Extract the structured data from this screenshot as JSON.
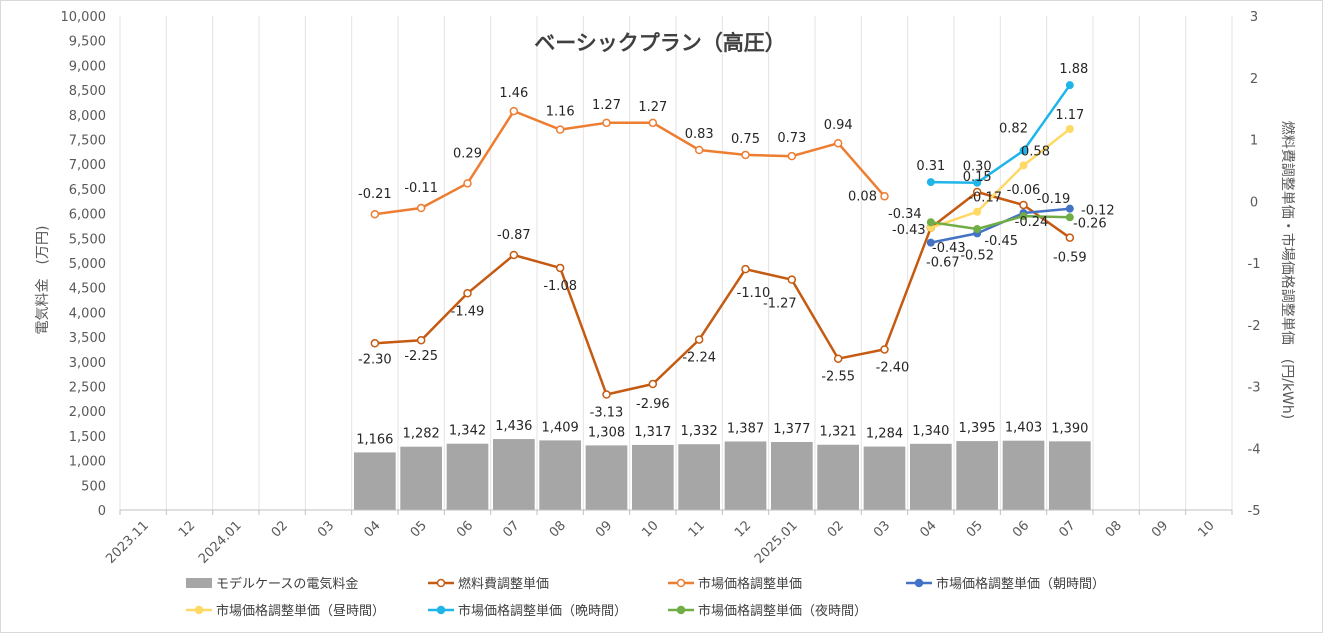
{
  "chart_data": {
    "type": "bar+line",
    "title": "ベーシックプラン（高圧）",
    "ylabel_left": "電気料金　(万円)",
    "ylabel_right": "燃料費調整単価・市場価格調整単価　(円/kWh)",
    "ylim_left": [
      0,
      10000
    ],
    "ylim_right": [
      -5,
      3
    ],
    "yticks_left": [
      "0",
      "500",
      "1,000",
      "1,500",
      "2,000",
      "2,500",
      "3,000",
      "3,500",
      "4,000",
      "4,500",
      "5,000",
      "5,500",
      "6,000",
      "6,500",
      "7,000",
      "7,500",
      "8,000",
      "8,500",
      "9,000",
      "9,500",
      "10,000"
    ],
    "yticks_right": [
      "-5",
      "-4",
      "-3",
      "-2",
      "-1",
      "0",
      "1",
      "2",
      "3"
    ],
    "categories": [
      "2023.11",
      "12",
      "2024.01",
      "02",
      "03",
      "04",
      "05",
      "06",
      "07",
      "08",
      "09",
      "10",
      "11",
      "12",
      "2025.01",
      "02",
      "03",
      "04",
      "05",
      "06",
      "07",
      "08",
      "09",
      "10"
    ],
    "grid": "vertical",
    "legend_position": "bottom",
    "series": [
      {
        "name": "モデルケースの電気料金",
        "kind": "bar",
        "axis": "left",
        "color": "#a6a6a6",
        "values": [
          null,
          null,
          null,
          null,
          null,
          1166,
          1282,
          1342,
          1436,
          1409,
          1308,
          1317,
          1332,
          1387,
          1377,
          1321,
          1284,
          1340,
          1395,
          1403,
          1390,
          null,
          null,
          null
        ],
        "labels": [
          null,
          null,
          null,
          null,
          null,
          "1,166",
          "1,282",
          "1,342",
          "1,436",
          "1,409",
          "1,308",
          "1,317",
          "1,332",
          "1,387",
          "1,377",
          "1,321",
          "1,284",
          "1,340",
          "1,395",
          "1,403",
          "1,390",
          null,
          null,
          null
        ]
      },
      {
        "name": "燃料費調整単価",
        "kind": "line",
        "axis": "right",
        "color": "#c55a11",
        "marker": "open",
        "values": [
          null,
          null,
          null,
          null,
          null,
          -2.3,
          -2.25,
          -1.49,
          -0.87,
          -1.08,
          -3.13,
          -2.96,
          -2.24,
          -1.1,
          -1.27,
          -2.55,
          -2.4,
          -0.43,
          0.15,
          -0.06,
          -0.59,
          null,
          null,
          null
        ],
        "labels": [
          null,
          null,
          null,
          null,
          null,
          "-2.30",
          "-2.25",
          "-1.49",
          "-0.87",
          "-1.08",
          "-3.13",
          "-2.96",
          "-2.24",
          "-1.10",
          "-1.27",
          "-2.55",
          "-2.40",
          "-0.43",
          "0.15",
          "-0.06",
          "-0.59",
          null,
          null,
          null
        ]
      },
      {
        "name": "市場価格調整単価",
        "kind": "line",
        "axis": "right",
        "color": "#ed7d31",
        "marker": "open",
        "values": [
          null,
          null,
          null,
          null,
          null,
          -0.21,
          -0.11,
          0.29,
          1.46,
          1.16,
          1.27,
          1.27,
          0.83,
          0.75,
          0.73,
          0.94,
          0.08,
          null,
          null,
          null,
          null,
          null,
          null,
          null
        ],
        "labels": [
          null,
          null,
          null,
          null,
          null,
          "-0.21",
          "-0.11",
          "0.29",
          "1.46",
          "1.16",
          "1.27",
          "1.27",
          "0.83",
          "0.75",
          "0.73",
          "0.94",
          "0.08",
          null,
          null,
          null,
          null,
          null,
          null,
          null
        ]
      },
      {
        "name": "市場価格調整単価（朝時間）",
        "kind": "line",
        "axis": "right",
        "color": "#4472c4",
        "marker": "filled",
        "values": [
          null,
          null,
          null,
          null,
          null,
          null,
          null,
          null,
          null,
          null,
          null,
          null,
          null,
          null,
          null,
          null,
          null,
          -0.67,
          -0.52,
          -0.19,
          -0.12,
          null,
          null,
          null
        ],
        "labels": [
          null,
          null,
          null,
          null,
          null,
          null,
          null,
          null,
          null,
          null,
          null,
          null,
          null,
          null,
          null,
          null,
          null,
          "-0.67",
          "-0.52",
          "-0.19",
          "-0.12",
          null,
          null,
          null
        ]
      },
      {
        "name": "市場価格調整単価（昼時間）",
        "kind": "line",
        "axis": "right",
        "color": "#ffd966",
        "marker": "filled",
        "values": [
          null,
          null,
          null,
          null,
          null,
          null,
          null,
          null,
          null,
          null,
          null,
          null,
          null,
          null,
          null,
          null,
          null,
          -0.43,
          -0.17,
          0.58,
          1.17,
          null,
          null,
          null
        ],
        "labels": [
          null,
          null,
          null,
          null,
          null,
          null,
          null,
          null,
          null,
          null,
          null,
          null,
          null,
          null,
          null,
          null,
          null,
          "-0.43",
          "-0.17",
          "0.58",
          "1.17",
          null,
          null,
          null
        ]
      },
      {
        "name": "市場価格調整単価（晩時間）",
        "kind": "line",
        "axis": "right",
        "color": "#1fb5e8",
        "marker": "filled",
        "values": [
          null,
          null,
          null,
          null,
          null,
          null,
          null,
          null,
          null,
          null,
          null,
          null,
          null,
          null,
          null,
          null,
          null,
          0.31,
          0.3,
          0.82,
          1.88,
          null,
          null,
          null
        ],
        "labels": [
          null,
          null,
          null,
          null,
          null,
          null,
          null,
          null,
          null,
          null,
          null,
          null,
          null,
          null,
          null,
          null,
          null,
          "0.31",
          "0.30",
          "0.82",
          "1.88",
          null,
          null,
          null
        ]
      },
      {
        "name": "市場価格調整単価（夜時間）",
        "kind": "line",
        "axis": "right",
        "color": "#70ad47",
        "marker": "filled",
        "values": [
          null,
          null,
          null,
          null,
          null,
          null,
          null,
          null,
          null,
          null,
          null,
          null,
          null,
          null,
          null,
          null,
          null,
          -0.34,
          -0.45,
          -0.24,
          -0.26,
          null,
          null,
          null
        ],
        "labels": [
          null,
          null,
          null,
          null,
          null,
          null,
          null,
          null,
          null,
          null,
          null,
          null,
          null,
          null,
          null,
          null,
          null,
          "-0.34",
          "-0.45",
          "-0.24",
          "-0.26",
          null,
          null,
          null
        ]
      }
    ]
  }
}
